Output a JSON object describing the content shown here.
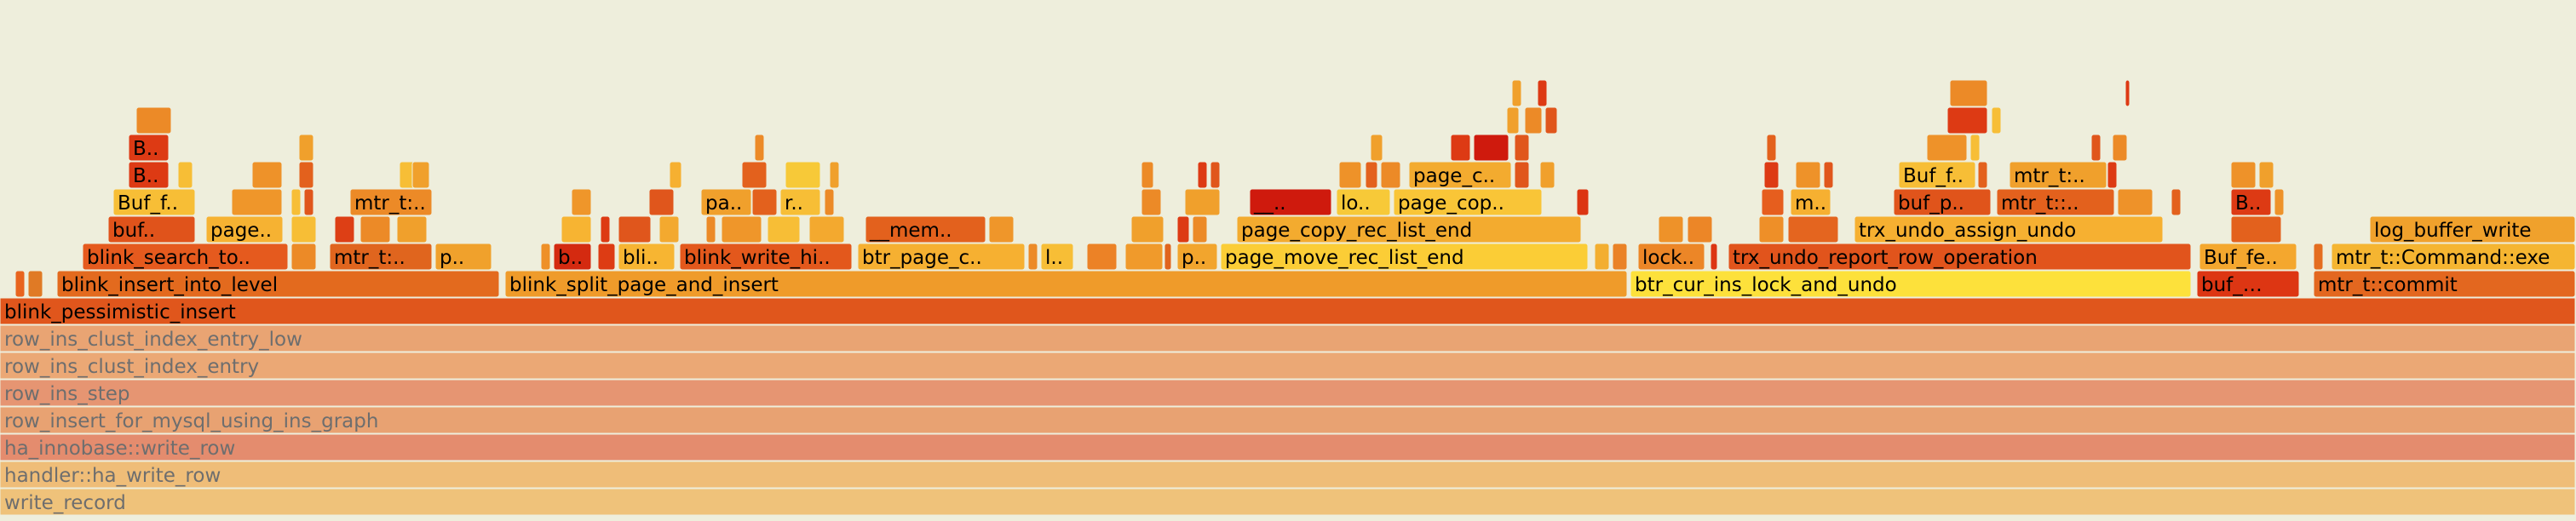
{
  "chart_data": {
    "type": "flamegraph",
    "frames": [
      {
        "name": "write_record",
        "depth": 0,
        "start": 0,
        "width": 1,
        "faded": true,
        "color": "#efc27a"
      },
      {
        "name": "handler::ha_write_row",
        "depth": 1,
        "start": 0,
        "width": 1,
        "faded": true,
        "color": "#efbd78"
      },
      {
        "name": "ha_innobase::write_row",
        "depth": 2,
        "start": 0,
        "width": 1,
        "faded": true,
        "color": "#e48c6e"
      },
      {
        "name": "row_insert_for_mysql_using_ins_graph",
        "depth": 3,
        "start": 0,
        "width": 1,
        "faded": true,
        "color": "#e8a272"
      },
      {
        "name": "row_ins_step",
        "depth": 4,
        "start": 0,
        "width": 1,
        "faded": true,
        "color": "#e69572"
      },
      {
        "name": "row_ins_clust_index_entry",
        "depth": 5,
        "start": 0,
        "width": 1,
        "faded": true,
        "color": "#eba875"
      },
      {
        "name": "row_ins_clust_index_entry_low",
        "depth": 6,
        "start": 0,
        "width": 1,
        "faded": true,
        "color": "#e9a473"
      },
      {
        "name": "blink_pessimistic_insert",
        "depth": 7,
        "start": 0,
        "width": 1,
        "faded": false,
        "color": "#e0561c"
      },
      {
        "name": "",
        "depth": 8,
        "start": 0.006,
        "width": 0.004,
        "color": "#e8641e"
      },
      {
        "name": "",
        "depth": 8,
        "start": 0.011,
        "width": 0.006,
        "color": "#e07a25"
      },
      {
        "name": "blink_insert_into_level",
        "depth": 8,
        "start": 0.022,
        "width": 0.172,
        "color": "#e36a1e"
      },
      {
        "name": "blink_split_page_and_insert",
        "depth": 8,
        "start": 0.196,
        "width": 0.436,
        "color": "#ef9b2a"
      },
      {
        "name": "btr_cur_ins_lock_and_undo",
        "depth": 8,
        "start": 0.633,
        "width": 0.218,
        "color": "#fde13b"
      },
      {
        "name": "buf_…",
        "depth": 8,
        "start": 0.853,
        "width": 0.04,
        "color": "#dd3613"
      },
      {
        "name": "mtr_t::commit",
        "depth": 8,
        "start": 0.898,
        "width": 0.102,
        "color": "#e3671f"
      },
      {
        "name": "blink_search_to..",
        "depth": 9,
        "start": 0.032,
        "width": 0.08,
        "color": "#e55a1e"
      },
      {
        "name": "",
        "depth": 9,
        "start": 0.113,
        "width": 0.01,
        "color": "#ec8a27"
      },
      {
        "name": "mtr_t:..",
        "depth": 9,
        "start": 0.128,
        "width": 0.04,
        "color": "#e0651e"
      },
      {
        "name": "p..",
        "depth": 9,
        "start": 0.169,
        "width": 0.022,
        "color": "#f0a12c"
      },
      {
        "name": "",
        "depth": 9,
        "start": 0.21,
        "width": 0.004,
        "color": "#ee9028"
      },
      {
        "name": "b..",
        "depth": 9,
        "start": 0.215,
        "width": 0.015,
        "color": "#d42a10"
      },
      {
        "name": "",
        "depth": 9,
        "start": 0.232,
        "width": 0.007,
        "color": "#dd3c14"
      },
      {
        "name": "bli..",
        "depth": 9,
        "start": 0.24,
        "width": 0.022,
        "color": "#f7b532"
      },
      {
        "name": "blink_write_hi..",
        "depth": 9,
        "start": 0.264,
        "width": 0.067,
        "color": "#e3581c"
      },
      {
        "name": "btr_page_c..",
        "depth": 9,
        "start": 0.333,
        "width": 0.065,
        "color": "#f6b031"
      },
      {
        "name": "",
        "depth": 9,
        "start": 0.399,
        "width": 0.004,
        "color": "#ec8a27"
      },
      {
        "name": "l..",
        "depth": 9,
        "start": 0.404,
        "width": 0.013,
        "color": "#f7be36"
      },
      {
        "name": "",
        "depth": 9,
        "start": 0.422,
        "width": 0.012,
        "color": "#ec8226"
      },
      {
        "name": "",
        "depth": 9,
        "start": 0.437,
        "width": 0.015,
        "color": "#f09a2b"
      },
      {
        "name": "",
        "depth": 9,
        "start": 0.452,
        "width": 0.003,
        "color": "#e0641d"
      },
      {
        "name": "p..",
        "depth": 9,
        "start": 0.457,
        "width": 0.016,
        "color": "#f2a52d"
      },
      {
        "name": "page_move_rec_list_end",
        "depth": 9,
        "start": 0.474,
        "width": 0.143,
        "color": "#fbcd36"
      },
      {
        "name": "",
        "depth": 9,
        "start": 0.619,
        "width": 0.006,
        "color": "#f3ae30"
      },
      {
        "name": "",
        "depth": 9,
        "start": 0.626,
        "width": 0.006,
        "color": "#ea8226"
      },
      {
        "name": "lock..",
        "depth": 9,
        "start": 0.636,
        "width": 0.026,
        "color": "#ec8627"
      },
      {
        "name": "",
        "depth": 9,
        "start": 0.664,
        "width": 0.003,
        "color": "#dc3513"
      },
      {
        "name": "trx_undo_report_row_operation",
        "depth": 9,
        "start": 0.671,
        "width": 0.18,
        "color": "#e1541c"
      },
      {
        "name": "Buf_fe..",
        "depth": 9,
        "start": 0.854,
        "width": 0.038,
        "color": "#f4a72e"
      },
      {
        "name": "",
        "depth": 9,
        "start": 0.898,
        "width": 0.004,
        "color": "#e46d20"
      },
      {
        "name": "mtr_t::Command::exe",
        "depth": 9,
        "start": 0.905,
        "width": 0.095,
        "color": "#f5b531"
      },
      {
        "name": "buf..",
        "depth": 10,
        "start": 0.042,
        "width": 0.034,
        "color": "#e0531b"
      },
      {
        "name": "page..",
        "depth": 10,
        "start": 0.08,
        "width": 0.03,
        "color": "#f6b232"
      },
      {
        "name": "",
        "depth": 10,
        "start": 0.113,
        "width": 0.01,
        "color": "#f7be36"
      },
      {
        "name": "",
        "depth": 10,
        "start": 0.13,
        "width": 0.008,
        "color": "#dd3f15"
      },
      {
        "name": "",
        "depth": 10,
        "start": 0.14,
        "width": 0.012,
        "color": "#ec8a27"
      },
      {
        "name": "",
        "depth": 10,
        "start": 0.154,
        "width": 0.012,
        "color": "#f0a02c"
      },
      {
        "name": "",
        "depth": 10,
        "start": 0.218,
        "width": 0.012,
        "color": "#f7b432"
      },
      {
        "name": "",
        "depth": 10,
        "start": 0.233,
        "width": 0.004,
        "color": "#dd3a14"
      },
      {
        "name": "",
        "depth": 10,
        "start": 0.24,
        "width": 0.013,
        "color": "#e0561c"
      },
      {
        "name": "",
        "depth": 10,
        "start": 0.256,
        "width": 0.008,
        "color": "#f3a92f"
      },
      {
        "name": "",
        "depth": 10,
        "start": 0.274,
        "width": 0.004,
        "color": "#ec8a27"
      },
      {
        "name": "",
        "depth": 10,
        "start": 0.28,
        "width": 0.016,
        "color": "#ef962a"
      },
      {
        "name": "",
        "depth": 10,
        "start": 0.298,
        "width": 0.013,
        "color": "#f7be36"
      },
      {
        "name": "",
        "depth": 10,
        "start": 0.314,
        "width": 0.014,
        "color": "#f3a92f"
      },
      {
        "name": "__mem..",
        "depth": 10,
        "start": 0.336,
        "width": 0.047,
        "color": "#e3611d"
      },
      {
        "name": "",
        "depth": 10,
        "start": 0.384,
        "width": 0.01,
        "color": "#ef962a"
      },
      {
        "name": "",
        "depth": 10,
        "start": 0.439,
        "width": 0.013,
        "color": "#f0a02c"
      },
      {
        "name": "",
        "depth": 10,
        "start": 0.457,
        "width": 0.005,
        "color": "#dd3a14"
      },
      {
        "name": "",
        "depth": 10,
        "start": 0.463,
        "width": 0.006,
        "color": "#ec8a27"
      },
      {
        "name": "page_copy_rec_list_end",
        "depth": 10,
        "start": 0.48,
        "width": 0.134,
        "color": "#f3ab2f"
      },
      {
        "name": "",
        "depth": 10,
        "start": 0.644,
        "width": 0.01,
        "color": "#ee9229"
      },
      {
        "name": "",
        "depth": 10,
        "start": 0.655,
        "width": 0.01,
        "color": "#ec8627"
      },
      {
        "name": "",
        "depth": 10,
        "start": 0.683,
        "width": 0.01,
        "color": "#ee8f28"
      },
      {
        "name": "",
        "depth": 10,
        "start": 0.694,
        "width": 0.02,
        "color": "#e4651f"
      },
      {
        "name": "trx_undo_assign_undo",
        "depth": 10,
        "start": 0.72,
        "width": 0.12,
        "color": "#f6b031"
      },
      {
        "name": "",
        "depth": 10,
        "start": 0.866,
        "width": 0.02,
        "color": "#e3611d"
      },
      {
        "name": "log_buffer_write",
        "depth": 10,
        "start": 0.92,
        "width": 0.08,
        "color": "#f0a12c"
      },
      {
        "name": "Buf_f..",
        "depth": 11,
        "start": 0.044,
        "width": 0.032,
        "color": "#f7be36"
      },
      {
        "name": "",
        "depth": 11,
        "start": 0.09,
        "width": 0.02,
        "color": "#ef962a"
      },
      {
        "name": "",
        "depth": 11,
        "start": 0.113,
        "width": 0.004,
        "color": "#f7be36"
      },
      {
        "name": "",
        "depth": 11,
        "start": 0.118,
        "width": 0.004,
        "color": "#e0561c"
      },
      {
        "name": "mtr_t:..",
        "depth": 11,
        "start": 0.136,
        "width": 0.032,
        "color": "#ec8a27"
      },
      {
        "name": "",
        "depth": 11,
        "start": 0.222,
        "width": 0.008,
        "color": "#ef962a"
      },
      {
        "name": "",
        "depth": 11,
        "start": 0.252,
        "width": 0.01,
        "color": "#e0561c"
      },
      {
        "name": "pa..",
        "depth": 11,
        "start": 0.272,
        "width": 0.02,
        "color": "#f0a02c"
      },
      {
        "name": "",
        "depth": 11,
        "start": 0.292,
        "width": 0.01,
        "color": "#e3611d"
      },
      {
        "name": "r..",
        "depth": 11,
        "start": 0.303,
        "width": 0.016,
        "color": "#f7be36"
      },
      {
        "name": "",
        "depth": 11,
        "start": 0.32,
        "width": 0.004,
        "color": "#ec8a27"
      },
      {
        "name": "",
        "depth": 11,
        "start": 0.443,
        "width": 0.008,
        "color": "#ec8a27"
      },
      {
        "name": "",
        "depth": 11,
        "start": 0.46,
        "width": 0.014,
        "color": "#f0a02c"
      },
      {
        "name": "__..",
        "depth": 11,
        "start": 0.485,
        "width": 0.032,
        "color": "#cf1a0d"
      },
      {
        "name": "lo..",
        "depth": 11,
        "start": 0.519,
        "width": 0.021,
        "color": "#f7c938"
      },
      {
        "name": "page_cop..",
        "depth": 11,
        "start": 0.541,
        "width": 0.058,
        "color": "#f9c537"
      },
      {
        "name": "",
        "depth": 11,
        "start": 0.612,
        "width": 0.005,
        "color": "#dc3513"
      },
      {
        "name": "",
        "depth": 11,
        "start": 0.684,
        "width": 0.009,
        "color": "#e65e1e"
      },
      {
        "name": "m..",
        "depth": 11,
        "start": 0.695,
        "width": 0.016,
        "color": "#f6b031"
      },
      {
        "name": "buf_p..",
        "depth": 11,
        "start": 0.735,
        "width": 0.038,
        "color": "#e0541b"
      },
      {
        "name": "mtr_t::..",
        "depth": 11,
        "start": 0.775,
        "width": 0.046,
        "color": "#e3611d"
      },
      {
        "name": "",
        "depth": 11,
        "start": 0.822,
        "width": 0.014,
        "color": "#ee9229"
      },
      {
        "name": "",
        "depth": 11,
        "start": 0.843,
        "width": 0.004,
        "color": "#e3611d"
      },
      {
        "name": "B..",
        "depth": 11,
        "start": 0.866,
        "width": 0.016,
        "color": "#dd3a14"
      },
      {
        "name": "",
        "depth": 11,
        "start": 0.883,
        "width": 0.004,
        "color": "#ee9229"
      },
      {
        "name": "B..",
        "depth": 12,
        "start": 0.05,
        "width": 0.016,
        "color": "#dd3a14"
      },
      {
        "name": "",
        "depth": 12,
        "start": 0.069,
        "width": 0.006,
        "color": "#f7be36"
      },
      {
        "name": "",
        "depth": 12,
        "start": 0.098,
        "width": 0.012,
        "color": "#ee9229"
      },
      {
        "name": "",
        "depth": 12,
        "start": 0.116,
        "width": 0.006,
        "color": "#e3611d"
      },
      {
        "name": "",
        "depth": 12,
        "start": 0.155,
        "width": 0.008,
        "color": "#f7be36"
      },
      {
        "name": "",
        "depth": 12,
        "start": 0.16,
        "width": 0.007,
        "color": "#f0a02c"
      },
      {
        "name": "",
        "depth": 12,
        "start": 0.26,
        "width": 0.005,
        "color": "#f6b031"
      },
      {
        "name": "",
        "depth": 12,
        "start": 0.288,
        "width": 0.01,
        "color": "#e3611d"
      },
      {
        "name": "",
        "depth": 12,
        "start": 0.305,
        "width": 0.014,
        "color": "#f7c938"
      },
      {
        "name": "",
        "depth": 12,
        "start": 0.322,
        "width": 0.004,
        "color": "#f0a02c"
      },
      {
        "name": "",
        "depth": 12,
        "start": 0.443,
        "width": 0.005,
        "color": "#ec8a27"
      },
      {
        "name": "",
        "depth": 12,
        "start": 0.465,
        "width": 0.004,
        "color": "#dd3a14"
      },
      {
        "name": "",
        "depth": 12,
        "start": 0.47,
        "width": 0.004,
        "color": "#e0561c"
      },
      {
        "name": "",
        "depth": 12,
        "start": 0.52,
        "width": 0.009,
        "color": "#ee9229"
      },
      {
        "name": "",
        "depth": 12,
        "start": 0.53,
        "width": 0.005,
        "color": "#e3611d"
      },
      {
        "name": "",
        "depth": 12,
        "start": 0.536,
        "width": 0.008,
        "color": "#ec8a27"
      },
      {
        "name": "page_c..",
        "depth": 12,
        "start": 0.547,
        "width": 0.04,
        "color": "#f3ab2f"
      },
      {
        "name": "",
        "depth": 12,
        "start": 0.588,
        "width": 0.006,
        "color": "#e0561c"
      },
      {
        "name": "",
        "depth": 12,
        "start": 0.598,
        "width": 0.006,
        "color": "#f0a02c"
      },
      {
        "name": "",
        "depth": 12,
        "start": 0.685,
        "width": 0.006,
        "color": "#dd3a14"
      },
      {
        "name": "",
        "depth": 12,
        "start": 0.697,
        "width": 0.01,
        "color": "#ee9229"
      },
      {
        "name": "",
        "depth": 12,
        "start": 0.708,
        "width": 0.004,
        "color": "#e0561c"
      },
      {
        "name": "Buf_f..",
        "depth": 12,
        "start": 0.737,
        "width": 0.03,
        "color": "#f7be36"
      },
      {
        "name": "",
        "depth": 12,
        "start": 0.768,
        "width": 0.004,
        "color": "#e3611d"
      },
      {
        "name": "mtr_t:..",
        "depth": 12,
        "start": 0.78,
        "width": 0.038,
        "color": "#f0a02c"
      },
      {
        "name": "",
        "depth": 12,
        "start": 0.818,
        "width": 0.004,
        "color": "#dd3a14"
      },
      {
        "name": "",
        "depth": 12,
        "start": 0.866,
        "width": 0.01,
        "color": "#ee9229"
      },
      {
        "name": "",
        "depth": 12,
        "start": 0.877,
        "width": 0.006,
        "color": "#f0a02c"
      },
      {
        "name": "B..",
        "depth": 13,
        "start": 0.05,
        "width": 0.016,
        "color": "#dd3a14"
      },
      {
        "name": "",
        "depth": 13,
        "start": 0.116,
        "width": 0.006,
        "color": "#f0a02c"
      },
      {
        "name": "",
        "depth": 13,
        "start": 0.293,
        "width": 0.004,
        "color": "#ec8a27"
      },
      {
        "name": "",
        "depth": 13,
        "start": 0.532,
        "width": 0.005,
        "color": "#f0a02c"
      },
      {
        "name": "",
        "depth": 13,
        "start": 0.563,
        "width": 0.008,
        "color": "#dd3a14"
      },
      {
        "name": "",
        "depth": 13,
        "start": 0.572,
        "width": 0.014,
        "color": "#cf1a0d"
      },
      {
        "name": "",
        "depth": 13,
        "start": 0.588,
        "width": 0.006,
        "color": "#e0561c"
      },
      {
        "name": "",
        "depth": 13,
        "start": 0.686,
        "width": 0.004,
        "color": "#e3611d"
      },
      {
        "name": "",
        "depth": 13,
        "start": 0.748,
        "width": 0.016,
        "color": "#ee9229"
      },
      {
        "name": "",
        "depth": 13,
        "start": 0.765,
        "width": 0.004,
        "color": "#f7be36"
      },
      {
        "name": "",
        "depth": 13,
        "start": 0.812,
        "width": 0.004,
        "color": "#e0561c"
      },
      {
        "name": "",
        "depth": 13,
        "start": 0.82,
        "width": 0.006,
        "color": "#ec8a27"
      },
      {
        "name": "",
        "depth": 14,
        "start": 0.053,
        "width": 0.014,
        "color": "#ec8a27"
      },
      {
        "name": "",
        "depth": 14,
        "start": 0.585,
        "width": 0.005,
        "color": "#f0a02c"
      },
      {
        "name": "",
        "depth": 14,
        "start": 0.592,
        "width": 0.007,
        "color": "#ec8a27"
      },
      {
        "name": "",
        "depth": 14,
        "start": 0.6,
        "width": 0.005,
        "color": "#e0561c"
      },
      {
        "name": "",
        "depth": 14,
        "start": 0.756,
        "width": 0.016,
        "color": "#dd3a14"
      },
      {
        "name": "",
        "depth": 14,
        "start": 0.773,
        "width": 0.004,
        "color": "#f7be36"
      },
      {
        "name": "",
        "depth": 15,
        "start": 0.587,
        "width": 0.004,
        "color": "#f0a02c"
      },
      {
        "name": "",
        "depth": 15,
        "start": 0.597,
        "width": 0.004,
        "color": "#dd3a14"
      },
      {
        "name": "",
        "depth": 15,
        "start": 0.757,
        "width": 0.015,
        "color": "#ec8a27"
      },
      {
        "name": "",
        "depth": 15,
        "start": 0.825,
        "width": 0.002,
        "color": "#dd3a14"
      }
    ]
  }
}
